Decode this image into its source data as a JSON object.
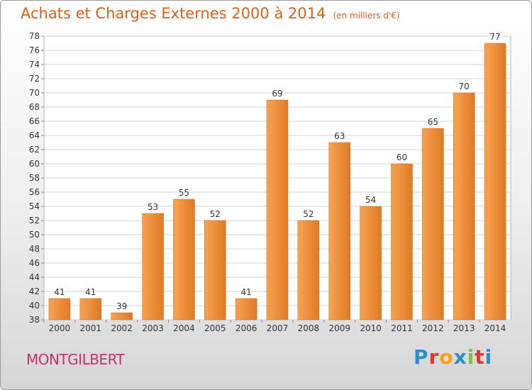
{
  "header": {
    "title": "Achats et Charges Externes 2000 à 2014",
    "subtitle": "(en milliers d'€)"
  },
  "footer": {
    "city": "MONTGILBERT",
    "logo_text": "Proxiti"
  },
  "colors": {
    "title": "#d95f1a",
    "city": "#c2336d",
    "bar_light": "#f8a858",
    "bar_dark": "#d9721f"
  },
  "chart_data": {
    "type": "bar",
    "title": "Achats et Charges Externes 2000 à 2014",
    "subtitle": "(en milliers d'€)",
    "categories": [
      "2000",
      "2001",
      "2002",
      "2003",
      "2004",
      "2005",
      "2006",
      "2007",
      "2008",
      "2009",
      "2010",
      "2011",
      "2012",
      "2013",
      "2014"
    ],
    "values": [
      41,
      41,
      39,
      53,
      55,
      52,
      41,
      69,
      52,
      63,
      54,
      60,
      65,
      70,
      77
    ],
    "ylim": [
      38,
      78
    ],
    "yticks": [
      38,
      40,
      42,
      44,
      46,
      48,
      50,
      52,
      54,
      56,
      58,
      60,
      62,
      64,
      66,
      68,
      70,
      72,
      74,
      76,
      78
    ],
    "grid": "horizontal",
    "data_labels": true
  }
}
